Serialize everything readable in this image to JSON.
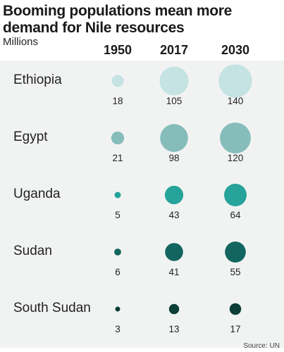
{
  "title": "Booming populations mean more demand for Nile resources",
  "unit_label": "Millions",
  "source": "Source: UN",
  "chart_data": {
    "type": "bubble-table",
    "title": "Booming populations mean more demand for Nile resources",
    "ylabel": "Millions",
    "columns": [
      "1950",
      "2017",
      "2030"
    ],
    "rows": [
      {
        "country": "Ethiopia",
        "values": [
          18,
          105,
          140
        ],
        "color": "#c4e3e2"
      },
      {
        "country": "Egypt",
        "values": [
          21,
          98,
          120
        ],
        "color": "#86bdba"
      },
      {
        "country": "Uganda",
        "values": [
          5,
          43,
          64
        ],
        "color": "#26a39b"
      },
      {
        "country": "Sudan",
        "values": [
          6,
          41,
          55
        ],
        "color": "#13665f"
      },
      {
        "country": "South Sudan",
        "values": [
          3,
          13,
          17
        ],
        "color": "#0c3d36"
      }
    ]
  }
}
